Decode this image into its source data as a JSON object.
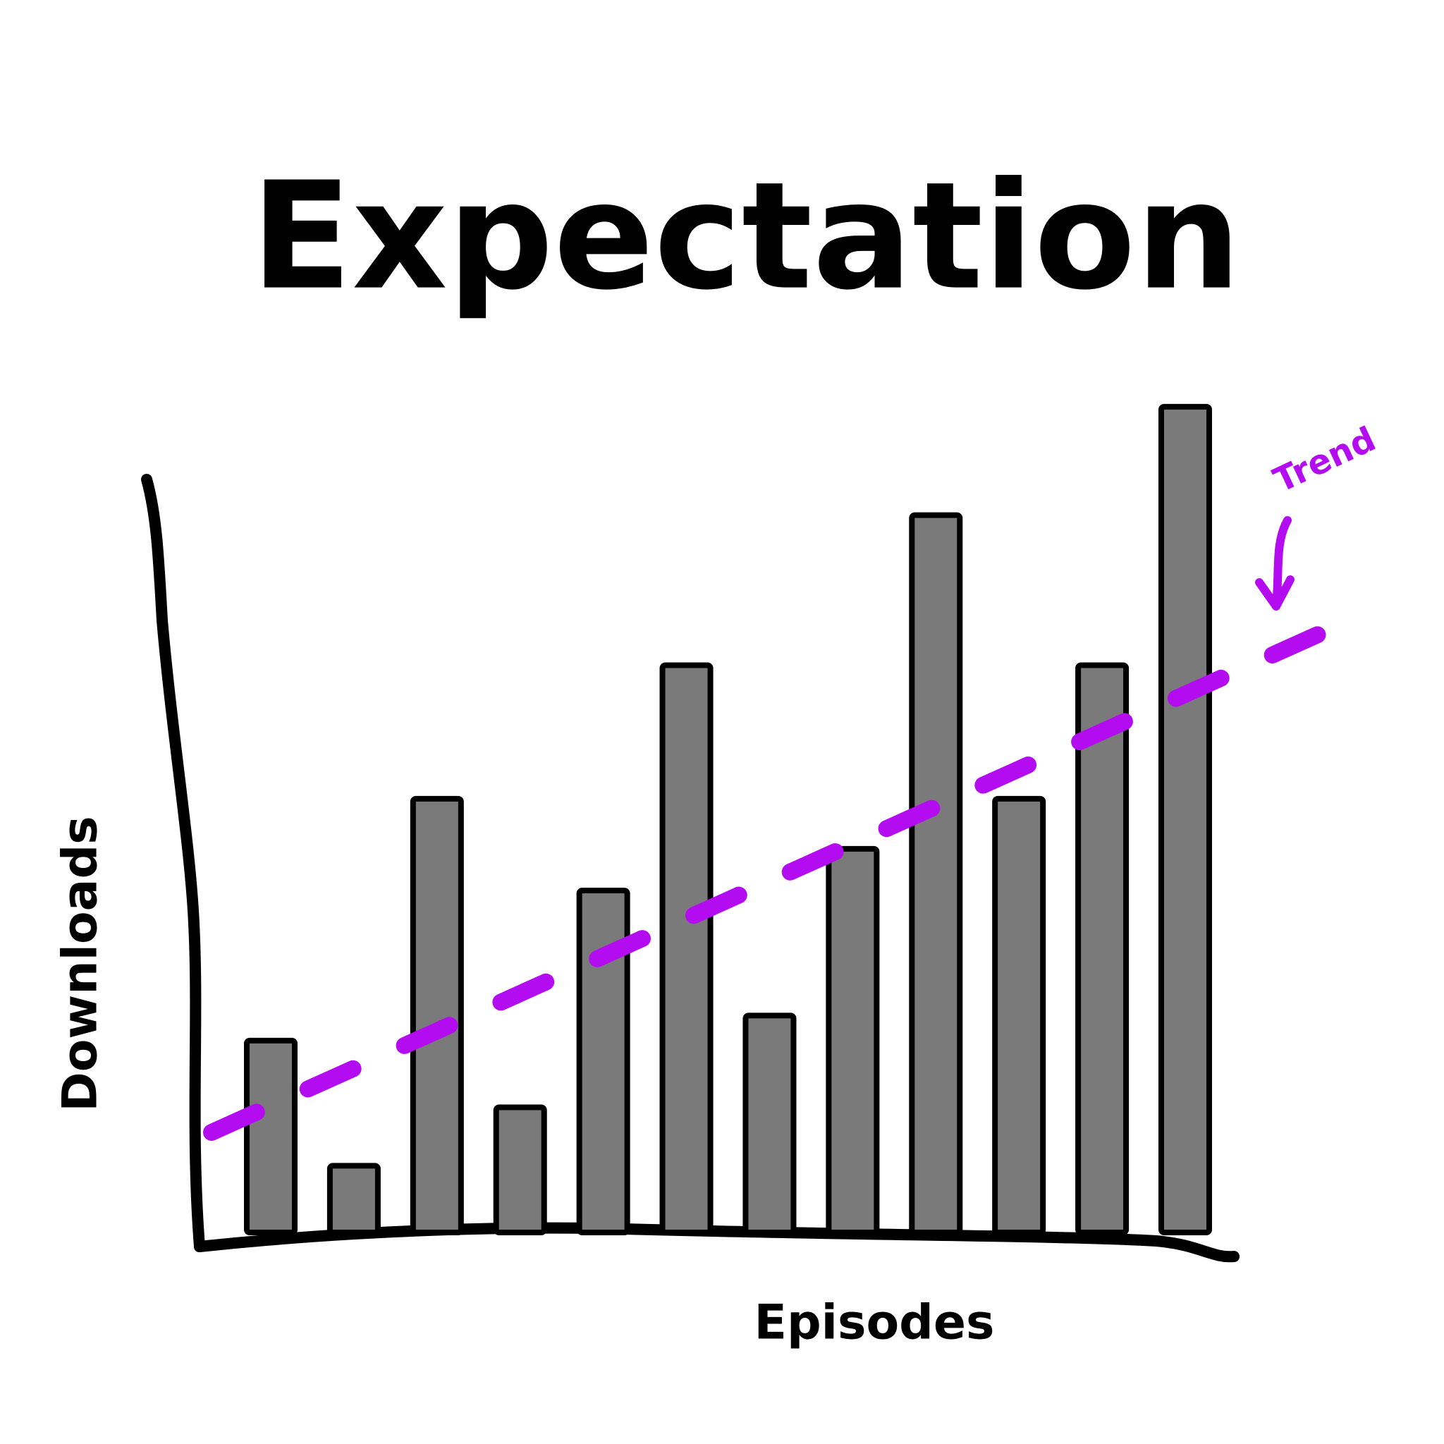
{
  "chart_data": {
    "type": "bar",
    "title": "Expectation",
    "x_label": "Episodes",
    "y_label": "Downloads",
    "categories": [
      null,
      null,
      null,
      null,
      null,
      null,
      null,
      null,
      null,
      null,
      null,
      null
    ],
    "values": [
      23,
      8,
      52,
      15,
      41,
      68,
      26,
      46,
      86,
      52,
      68,
      99
    ],
    "color": "#7a7a7a",
    "ylim": [
      0,
      100
    ],
    "trend": {
      "name": "Trend",
      "color": "#b40cf0",
      "values": [
        12,
        74
      ]
    }
  }
}
